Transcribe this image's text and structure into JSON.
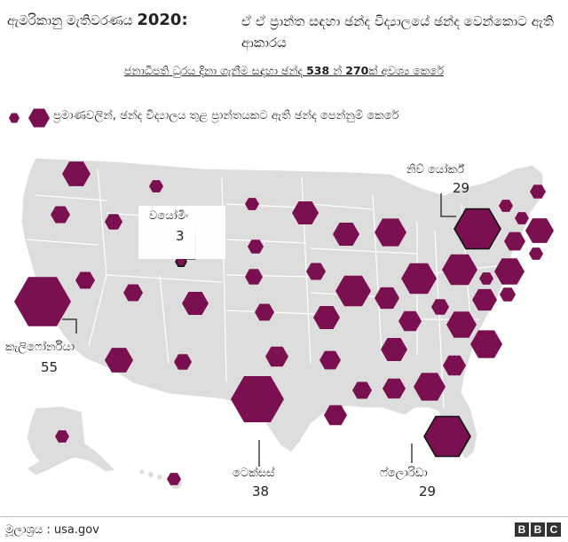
{
  "title": {
    "prefix": "ඇමරිකානු මැතිවරණය",
    "year": "2020:",
    "main": "ඒ ඒ ප්‍රාන්ත සඳහා ඡන්ද විද්‍යාලයේ ඡන්ද වෙන්කොට ඇති ආකාරය"
  },
  "subtitle": {
    "before": "ජනාධිපති ධුරය දිනා ගැනීම සඳහා ඡන්ද ",
    "total": "538",
    "mid": " න් ",
    "needed": "270",
    "after": "ක් අවශ්‍ය කෙරේ"
  },
  "legend": {
    "text": "ප්‍රමාණවලින්, ඡන්ද විද්‍යාලය තුළ ප්‍රාන්තයකට ඇති ඡන්ද පෙන්නුම් කෙරේ"
  },
  "callouts": {
    "new_york": {
      "label": "නිව් යෝර්ක්",
      "votes": "29"
    },
    "wyoming": {
      "label": "වයෝමිං",
      "votes": "3"
    },
    "california": {
      "label": "කැලිෆෝර්නියා",
      "votes": "55"
    },
    "texas": {
      "label": "ටෙක්සස්",
      "votes": "38"
    },
    "florida": {
      "label": "ෆ්ලොරිඩා",
      "votes": "29"
    }
  },
  "colors": {
    "hex_fill": "#7b1050",
    "map_fill": "#dddddd",
    "map_border": "#ffffff"
  },
  "footer": {
    "source": "මූලාශ්‍රය : usa.gov",
    "logo": [
      "B",
      "B",
      "C"
    ]
  }
}
